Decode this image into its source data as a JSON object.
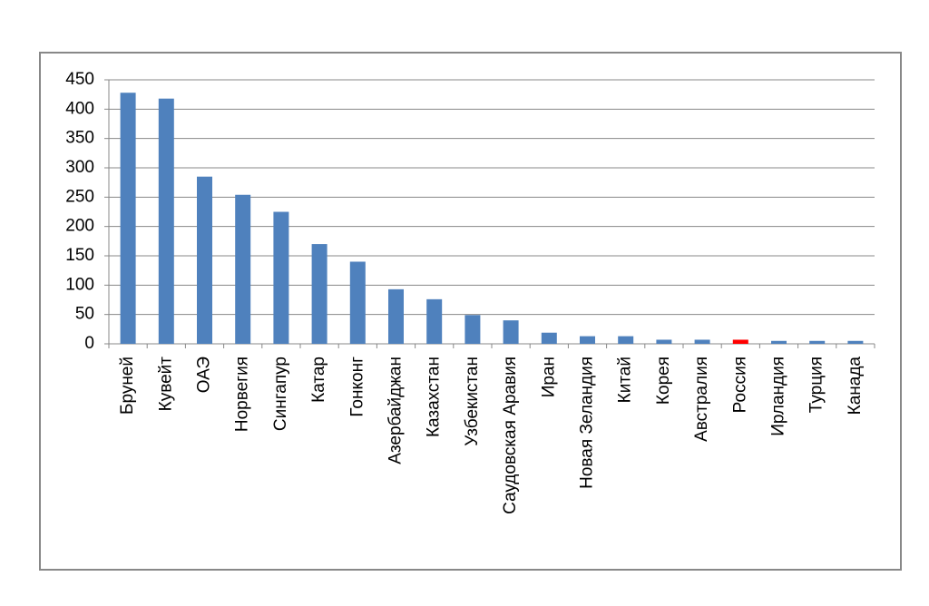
{
  "chart_data": {
    "type": "bar",
    "categories": [
      "Бруней",
      "Кувейт",
      "ОАЭ",
      "Норвегия",
      "Сингапур",
      "Катар",
      "Гонконг",
      "Азербайджан",
      "Казахстан",
      "Узбекистан",
      "Саудовская Аравия",
      "Иран",
      "Новая Зеландия",
      "Китай",
      "Корея",
      "Австралия",
      "Россия",
      "Ирландия",
      "Турция",
      "Канада"
    ],
    "values": [
      428,
      418,
      285,
      254,
      225,
      170,
      140,
      93,
      76,
      49,
      40,
      19,
      13,
      13,
      7,
      7,
      7,
      5,
      5,
      5
    ],
    "colors": [
      "#4f81bd",
      "#4f81bd",
      "#4f81bd",
      "#4f81bd",
      "#4f81bd",
      "#4f81bd",
      "#4f81bd",
      "#4f81bd",
      "#4f81bd",
      "#4f81bd",
      "#4f81bd",
      "#4f81bd",
      "#4f81bd",
      "#4f81bd",
      "#4f81bd",
      "#4f81bd",
      "#ff0000",
      "#4f81bd",
      "#4f81bd",
      "#4f81bd"
    ],
    "ylim": [
      0,
      450
    ],
    "yticks": [
      0,
      50,
      100,
      150,
      200,
      250,
      300,
      350,
      400,
      450
    ],
    "grid": true
  }
}
